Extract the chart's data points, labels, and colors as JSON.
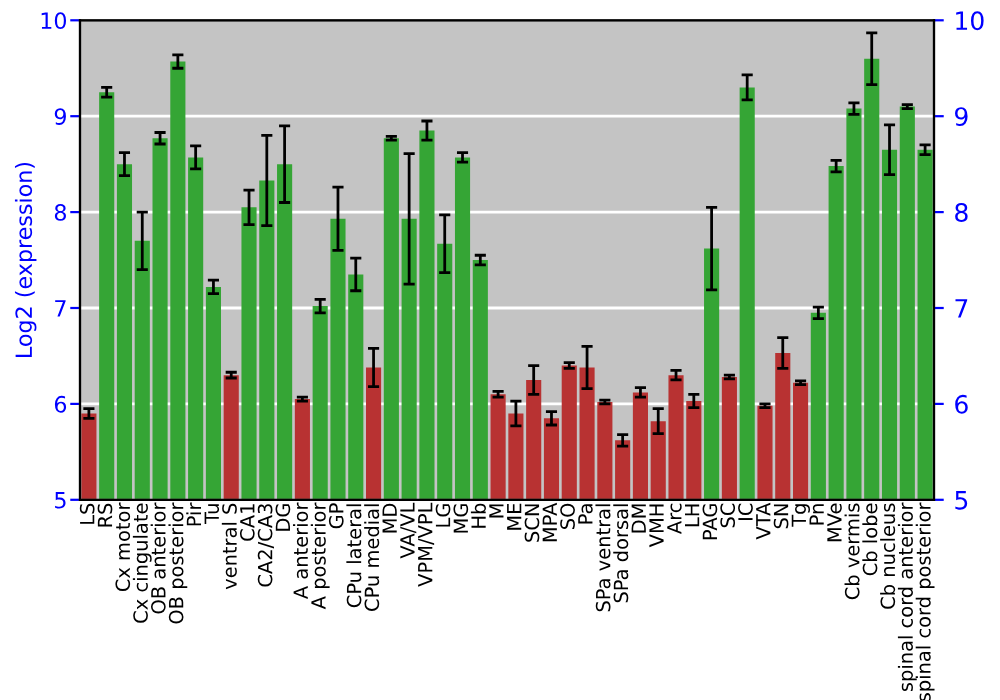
{
  "chart_data": {
    "type": "bar",
    "ylabel": "Log2 (expression)",
    "categories": [
      "LS",
      "RS",
      "Cx motor",
      "Cx cingulate",
      "OB anterior",
      "OB posterior",
      "Pir",
      "Tu",
      "ventral S",
      "CA1",
      "CA2/CA3",
      "DG",
      "A anterior",
      "A posterior",
      "GP",
      "CPu lateral",
      "CPu medial",
      "MD",
      "VA/VL",
      "VPM/VPL",
      "LG",
      "MG",
      "Hb",
      "M",
      "ME",
      "SCN",
      "MPA",
      "SO",
      "Pa",
      "SPa ventral",
      "SPa dorsal",
      "DM",
      "VMH",
      "Arc",
      "LH",
      "PAG",
      "SC",
      "IC",
      "VTA",
      "SN",
      "Tg",
      "Pn",
      "MVe",
      "Cb vermis",
      "Cb lobe",
      "Cb nucleus",
      "spinal cord anterior",
      "spinal cord posterior"
    ],
    "values": [
      5.9,
      9.25,
      8.5,
      7.7,
      8.77,
      9.57,
      8.57,
      7.22,
      6.3,
      8.05,
      8.33,
      8.5,
      6.05,
      7.02,
      7.93,
      7.35,
      6.38,
      8.77,
      7.93,
      8.85,
      7.67,
      8.57,
      7.5,
      6.1,
      5.9,
      6.25,
      5.85,
      6.4,
      6.38,
      6.02,
      5.62,
      6.12,
      5.82,
      6.3,
      6.03,
      7.62,
      6.28,
      9.3,
      5.98,
      6.53,
      6.22,
      6.95,
      8.48,
      9.08,
      9.6,
      8.65,
      9.1,
      8.65
    ],
    "errors": [
      0.05,
      0.05,
      0.12,
      0.3,
      0.06,
      0.07,
      0.12,
      0.07,
      0.03,
      0.18,
      0.47,
      0.4,
      0.02,
      0.07,
      0.33,
      0.17,
      0.2,
      0.02,
      0.68,
      0.1,
      0.3,
      0.05,
      0.05,
      0.03,
      0.13,
      0.15,
      0.07,
      0.03,
      0.22,
      0.02,
      0.06,
      0.05,
      0.13,
      0.05,
      0.07,
      0.43,
      0.02,
      0.13,
      0.02,
      0.16,
      0.02,
      0.06,
      0.06,
      0.06,
      0.27,
      0.26,
      0.02,
      0.05
    ],
    "colors": [
      "#b83232",
      "#35a535",
      "#35a535",
      "#35a535",
      "#35a535",
      "#35a535",
      "#35a535",
      "#35a535",
      "#b83232",
      "#35a535",
      "#35a535",
      "#35a535",
      "#b83232",
      "#35a535",
      "#35a535",
      "#35a535",
      "#b83232",
      "#35a535",
      "#35a535",
      "#35a535",
      "#35a535",
      "#35a535",
      "#35a535",
      "#b83232",
      "#b83232",
      "#b83232",
      "#b83232",
      "#b83232",
      "#b83232",
      "#b83232",
      "#b83232",
      "#b83232",
      "#b83232",
      "#b83232",
      "#b83232",
      "#35a535",
      "#b83232",
      "#35a535",
      "#b83232",
      "#b83232",
      "#b83232",
      "#35a535",
      "#35a535",
      "#35a535",
      "#35a535",
      "#35a535",
      "#35a535",
      "#35a535"
    ],
    "ylim": [
      5,
      10
    ],
    "yticks": [
      5,
      6,
      7,
      8,
      9,
      10
    ],
    "y2lim": [
      5,
      10
    ],
    "y2ticks": [
      5,
      6,
      7,
      8,
      9,
      10
    ],
    "grid": "y"
  }
}
